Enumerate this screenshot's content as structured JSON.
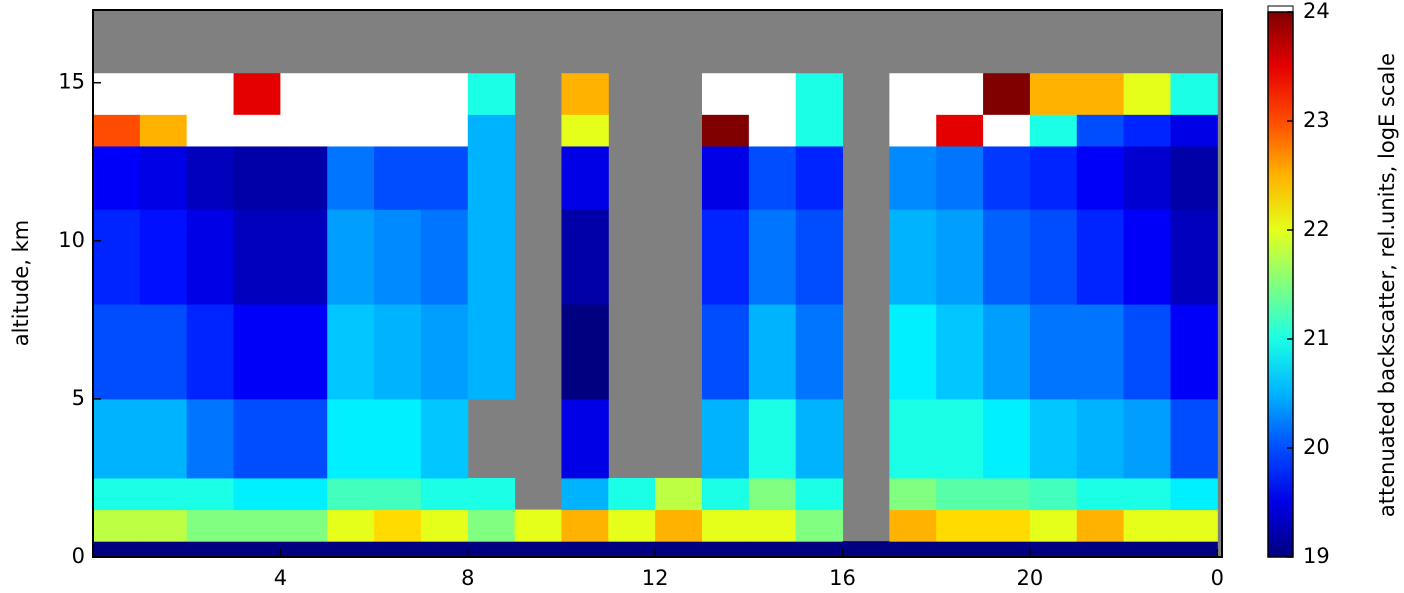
{
  "chart_data": {
    "type": "heatmap",
    "ylabel": "altitude, km",
    "x_bins": [
      0,
      1,
      2,
      3,
      4,
      5,
      6,
      7,
      8,
      9,
      10,
      11,
      12,
      13,
      14,
      15,
      16,
      17,
      18,
      19,
      20,
      21,
      22,
      23,
      24
    ],
    "y_bins": [
      0,
      0.5,
      1.5,
      2.5,
      5,
      8,
      11,
      13,
      14,
      15.3,
      17.3
    ],
    "z": [
      [
        19,
        21.8,
        21,
        20.5,
        20,
        19.8,
        19.6,
        23,
        24.5,
        null
      ],
      [
        19,
        21.8,
        21,
        20.5,
        20,
        19.7,
        19.5,
        22.5,
        24.5,
        null
      ],
      [
        19,
        21.5,
        21,
        20.2,
        19.8,
        19.5,
        19.3,
        24.5,
        24.5,
        null
      ],
      [
        19,
        21.5,
        20.8,
        20,
        19.6,
        19.3,
        19.2,
        24.5,
        23.5,
        null
      ],
      [
        19,
        21.5,
        20.8,
        20,
        19.6,
        19.3,
        19.2,
        24.5,
        24.5,
        null
      ],
      [
        19,
        22,
        21.2,
        20.8,
        20.6,
        20.4,
        20.2,
        24.5,
        24.5,
        null
      ],
      [
        19,
        22.3,
        21.2,
        20.8,
        20.5,
        20.3,
        20,
        24.5,
        24.5,
        null
      ],
      [
        19,
        22,
        21,
        20.6,
        20.4,
        20.2,
        20,
        24.5,
        24.5,
        null
      ],
      [
        19,
        21.5,
        21,
        null,
        20.5,
        20.5,
        20.5,
        20.5,
        21,
        null
      ],
      [
        19,
        22,
        null,
        null,
        null,
        null,
        null,
        null,
        null,
        null
      ],
      [
        19,
        22.5,
        20.5,
        19.5,
        19,
        19.2,
        19.5,
        22,
        22.5,
        null
      ],
      [
        19,
        22,
        21,
        null,
        null,
        null,
        null,
        null,
        null,
        null
      ],
      [
        19,
        22.5,
        21.8,
        null,
        null,
        null,
        null,
        null,
        null,
        null
      ],
      [
        19,
        22,
        21,
        20.5,
        20,
        19.8,
        19.5,
        24,
        24.5,
        null
      ],
      [
        19,
        22,
        21.5,
        21,
        20.5,
        20.2,
        20,
        24.5,
        24.5,
        null
      ],
      [
        19,
        21.5,
        21,
        20.5,
        20.2,
        20,
        19.8,
        21,
        21,
        null
      ],
      [
        19,
        null,
        null,
        null,
        null,
        null,
        null,
        null,
        null,
        null
      ],
      [
        19,
        22.5,
        21.5,
        21,
        20.8,
        20.5,
        20.3,
        24.5,
        24.5,
        null
      ],
      [
        19,
        22.3,
        21.3,
        21,
        20.6,
        20.4,
        20.2,
        23.5,
        24.5,
        null
      ],
      [
        19,
        22.3,
        21.3,
        20.8,
        20.4,
        20.1,
        19.9,
        24.5,
        24,
        null
      ],
      [
        19,
        22,
        21.2,
        20.6,
        20.2,
        20,
        19.8,
        21,
        22.5,
        null
      ],
      [
        19,
        22.5,
        21,
        20.5,
        20.2,
        19.8,
        19.6,
        20,
        22.5,
        null
      ],
      [
        19,
        22,
        21,
        20.4,
        20,
        19.6,
        19.4,
        19.8,
        22,
        null
      ],
      [
        19,
        22,
        20.8,
        20,
        19.6,
        19.3,
        19.2,
        19.5,
        21,
        null
      ]
    ],
    "xlim": [
      0,
      24.1
    ],
    "xticks": [
      4,
      8,
      12,
      16,
      20,
      {
        "value": 24,
        "label": "0"
      }
    ],
    "ylim": [
      0,
      17.3
    ],
    "yticks": [
      0,
      5,
      10,
      15
    ],
    "colormap": "jet",
    "nodata_color": "#808080",
    "over_color": "#ffffff",
    "colorbar": {
      "label": "attenuated backscatter, rel.units, logE scale",
      "lim": [
        19,
        24
      ],
      "ticks": [
        19,
        20,
        21,
        22,
        23,
        24
      ]
    }
  }
}
